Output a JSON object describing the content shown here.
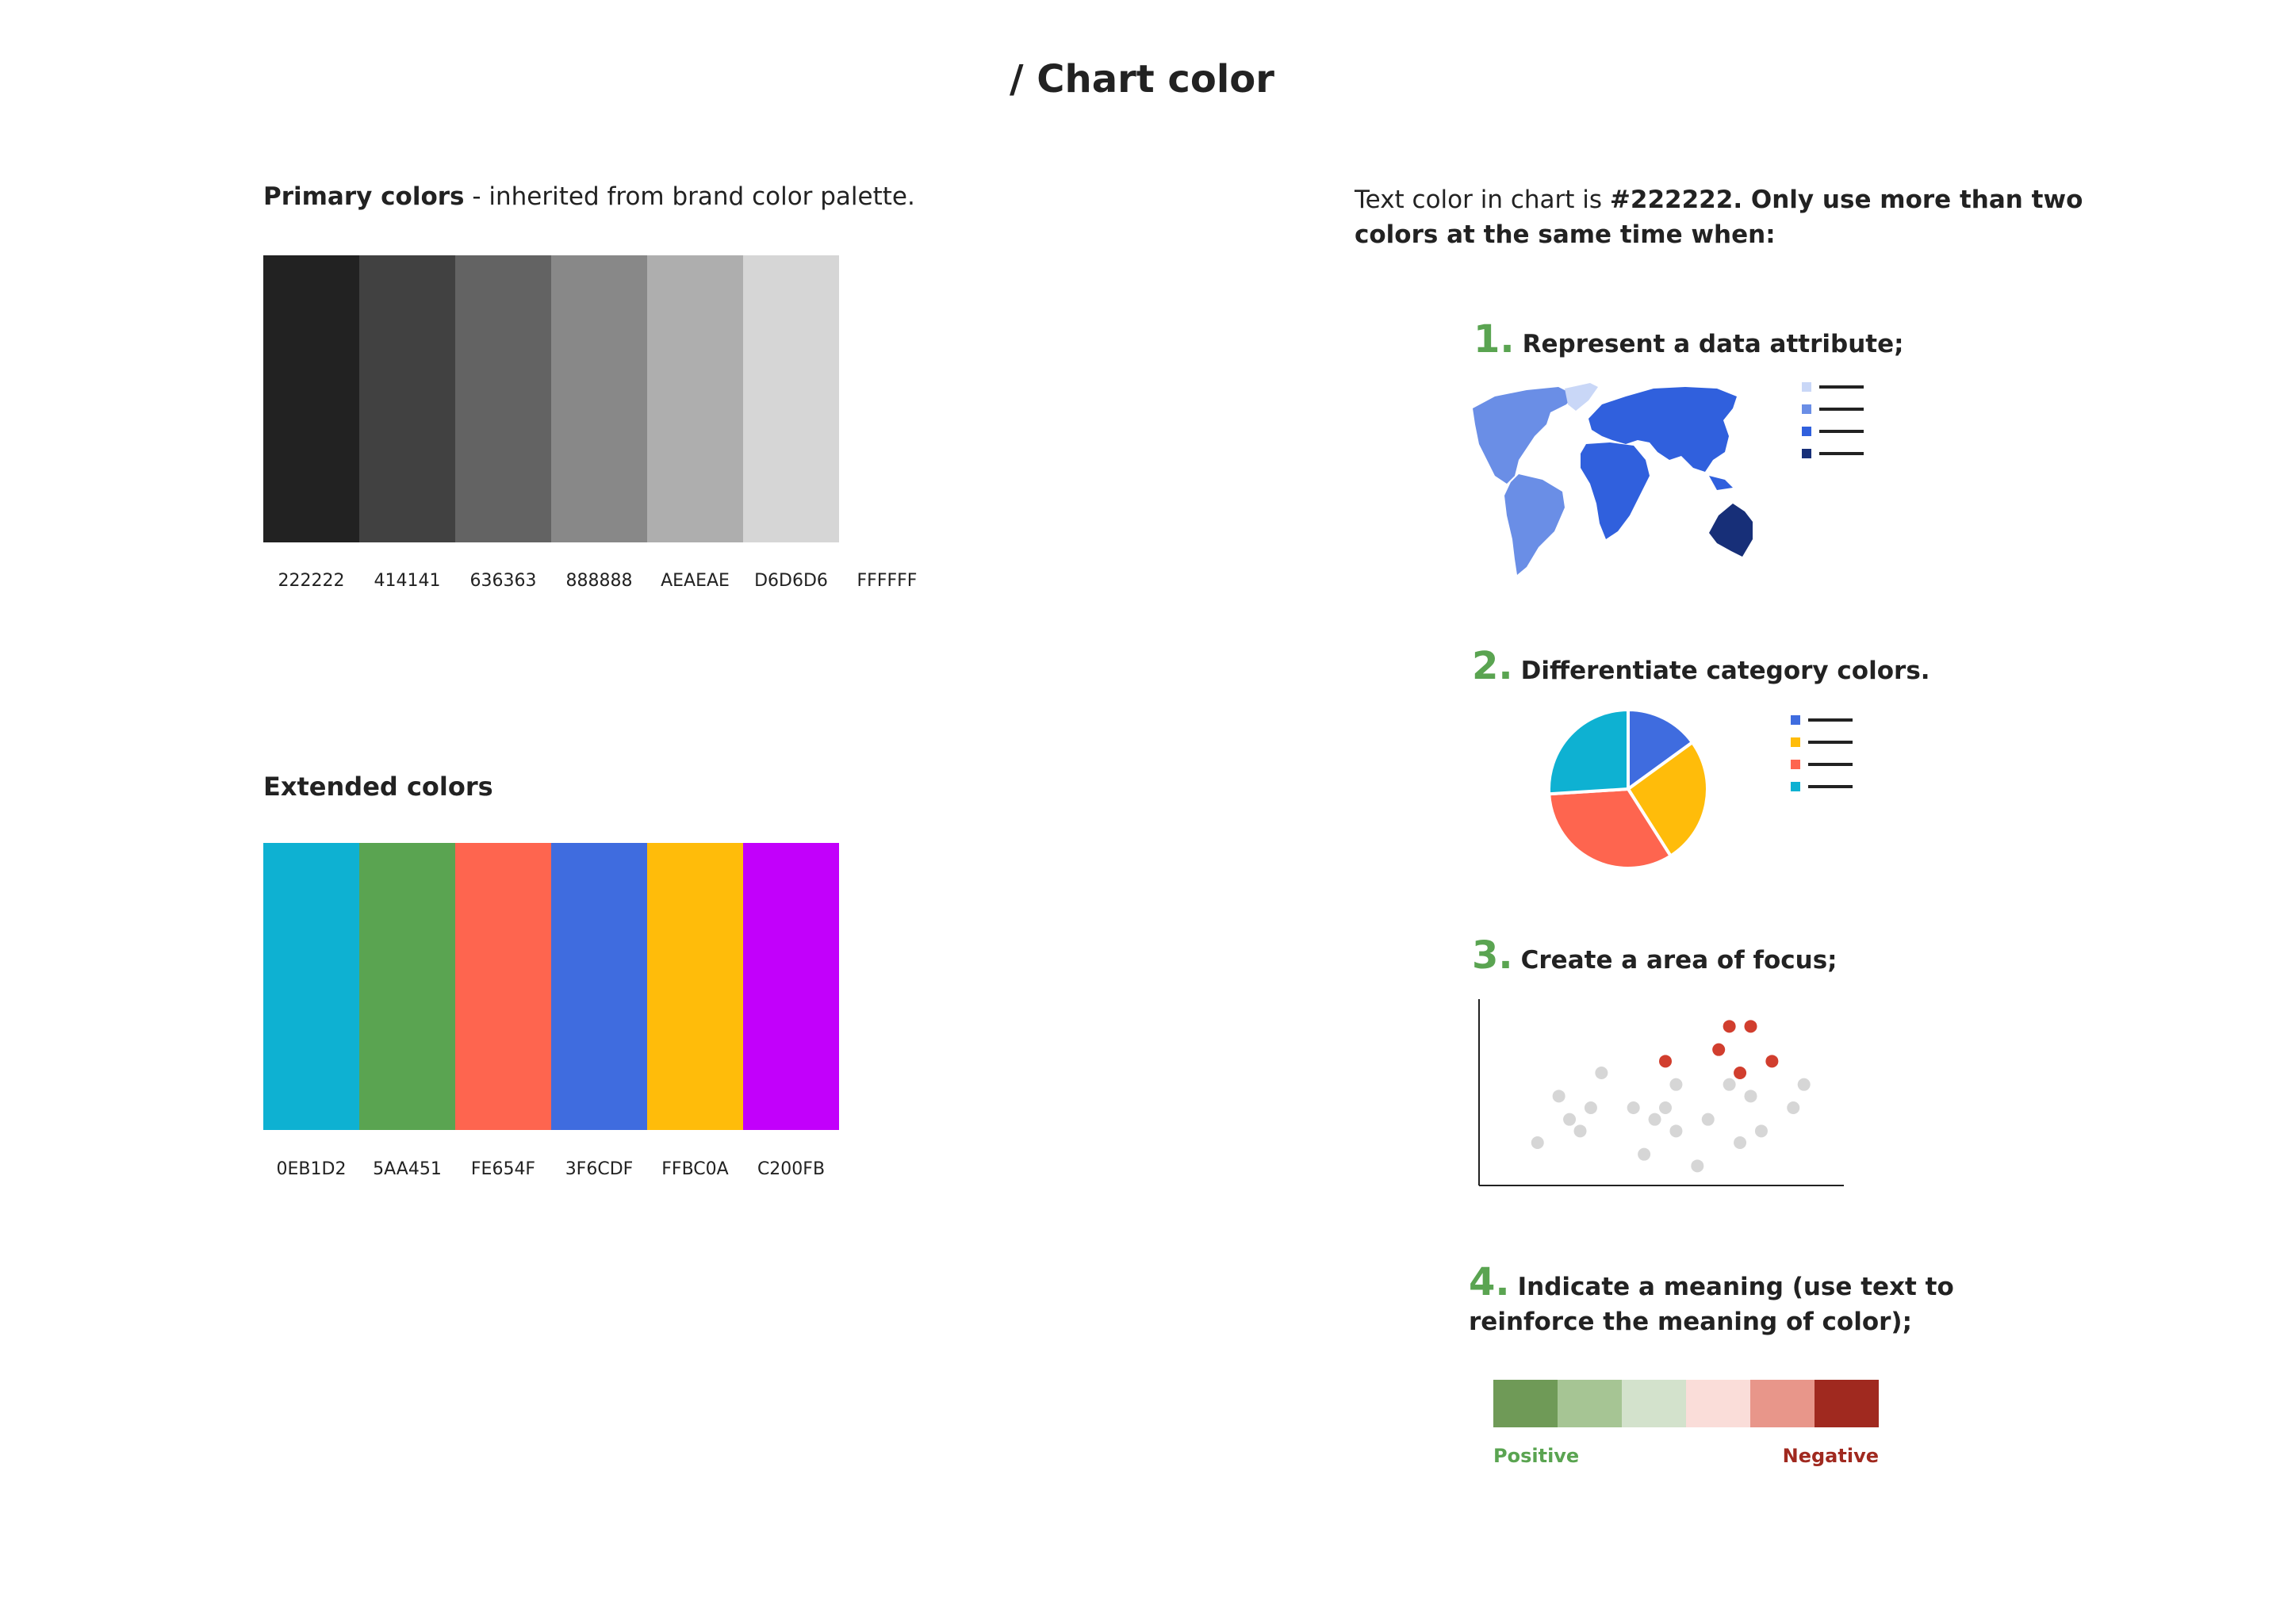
{
  "title": "/ Chart color",
  "primary": {
    "heading_bold": "Primary colors",
    "heading_rest": " - inherited from brand color palette.",
    "colors": [
      {
        "hex": "#222222",
        "code": "222222"
      },
      {
        "hex": "#414141",
        "code": "414141"
      },
      {
        "hex": "#636363",
        "code": "636363"
      },
      {
        "hex": "#888888",
        "code": "888888"
      },
      {
        "hex": "#AEAEAE",
        "code": "AEAEAE"
      },
      {
        "hex": "#D6D6D6",
        "code": "D6D6D6"
      },
      {
        "hex": "#FFFFFF",
        "code": "FFFFFF"
      }
    ]
  },
  "extended": {
    "heading": "Extended colors",
    "colors": [
      {
        "hex": "#0EB1D2",
        "code": "0EB1D2"
      },
      {
        "hex": "#5AA451",
        "code": "5AA451"
      },
      {
        "hex": "#FE654F",
        "code": "FE654F"
      },
      {
        "hex": "#3F6CDF",
        "code": "3F6CDF"
      },
      {
        "hex": "#FFBC0A",
        "code": "FFBC0A"
      },
      {
        "hex": "#C200FB",
        "code": "C200FB"
      }
    ]
  },
  "rules": {
    "intro_plain": "Text color in chart is ",
    "intro_bold": "#222222. Only use more than two colors at the same time when:",
    "items": [
      {
        "num": "1.",
        "text": "Represent a data attribute;"
      },
      {
        "num": "2.",
        "text": "Differentiate category colors."
      },
      {
        "num": "3.",
        "text": "Create a area of focus;"
      },
      {
        "num": "4.",
        "text": "Indicate a meaning (use text to reinforce the meaning of color);"
      }
    ]
  },
  "map_legend_colors": [
    "#C9D7F7",
    "#6A8EE6",
    "#3060DD",
    "#172F78"
  ],
  "map_colors": {
    "americas": "#6A8EE6",
    "greenland": "#C9D7F7",
    "eurasia_africa": "#3060DD",
    "australia": "#172F78"
  },
  "pie": {
    "values": [
      15,
      26,
      33,
      26
    ],
    "colors": [
      "#3F6CDF",
      "#FFBC0A",
      "#FE654F",
      "#0EB1D2"
    ]
  },
  "scatter": {
    "gray": [
      [
        4,
        3
      ],
      [
        6,
        7
      ],
      [
        7,
        5
      ],
      [
        9,
        6
      ],
      [
        8,
        4
      ],
      [
        10,
        9
      ],
      [
        13,
        6
      ],
      [
        14,
        2
      ],
      [
        15,
        5
      ],
      [
        16,
        6
      ],
      [
        17,
        8
      ],
      [
        17,
        4
      ],
      [
        19,
        1
      ],
      [
        20,
        5
      ],
      [
        22,
        8
      ],
      [
        23,
        3
      ],
      [
        24,
        7
      ],
      [
        25,
        4
      ],
      [
        28,
        6
      ],
      [
        29,
        8
      ]
    ],
    "red": [
      [
        16,
        10
      ],
      [
        21,
        11
      ],
      [
        22,
        13
      ],
      [
        23,
        9
      ],
      [
        24,
        13
      ],
      [
        26,
        10
      ]
    ],
    "gray_color": "#D6D6D6",
    "red_color": "#D13E2E",
    "xlim": [
      0,
      32
    ],
    "ylim": [
      0,
      15
    ]
  },
  "heatmap": {
    "colors": [
      "#6F9A57",
      "#A6C594",
      "#D3E2CC",
      "#FADDD9",
      "#E8968A",
      "#A0291F"
    ],
    "positive": "Positive",
    "negative": "Negative",
    "positive_color": "#5AA451",
    "negative_color": "#A0291F"
  }
}
